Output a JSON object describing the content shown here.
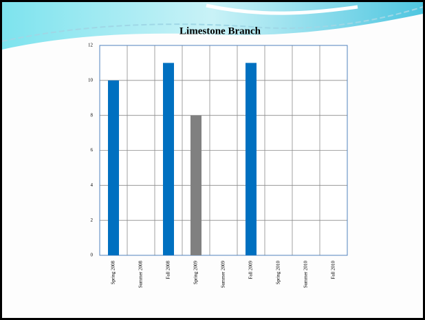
{
  "chart_data": {
    "type": "bar",
    "title": "Limestone Branch",
    "categories": [
      "Spring 2008",
      "Summer 2008",
      "Fall 2008",
      "Spring 2009",
      "Summer 2009",
      "Fall 2009",
      "Spring 2010",
      "Summer 2010",
      "Fall 2010"
    ],
    "values": [
      10,
      0,
      11,
      8,
      0,
      11,
      0,
      0,
      0
    ],
    "colors": [
      "#0070c0",
      "#0070c0",
      "#0070c0",
      "#808080",
      "#0070c0",
      "#0070c0",
      "#0070c0",
      "#0070c0",
      "#0070c0"
    ],
    "ylim": [
      0,
      12
    ],
    "yticks": [
      0,
      2,
      4,
      6,
      8,
      10,
      12
    ],
    "grid": true
  }
}
